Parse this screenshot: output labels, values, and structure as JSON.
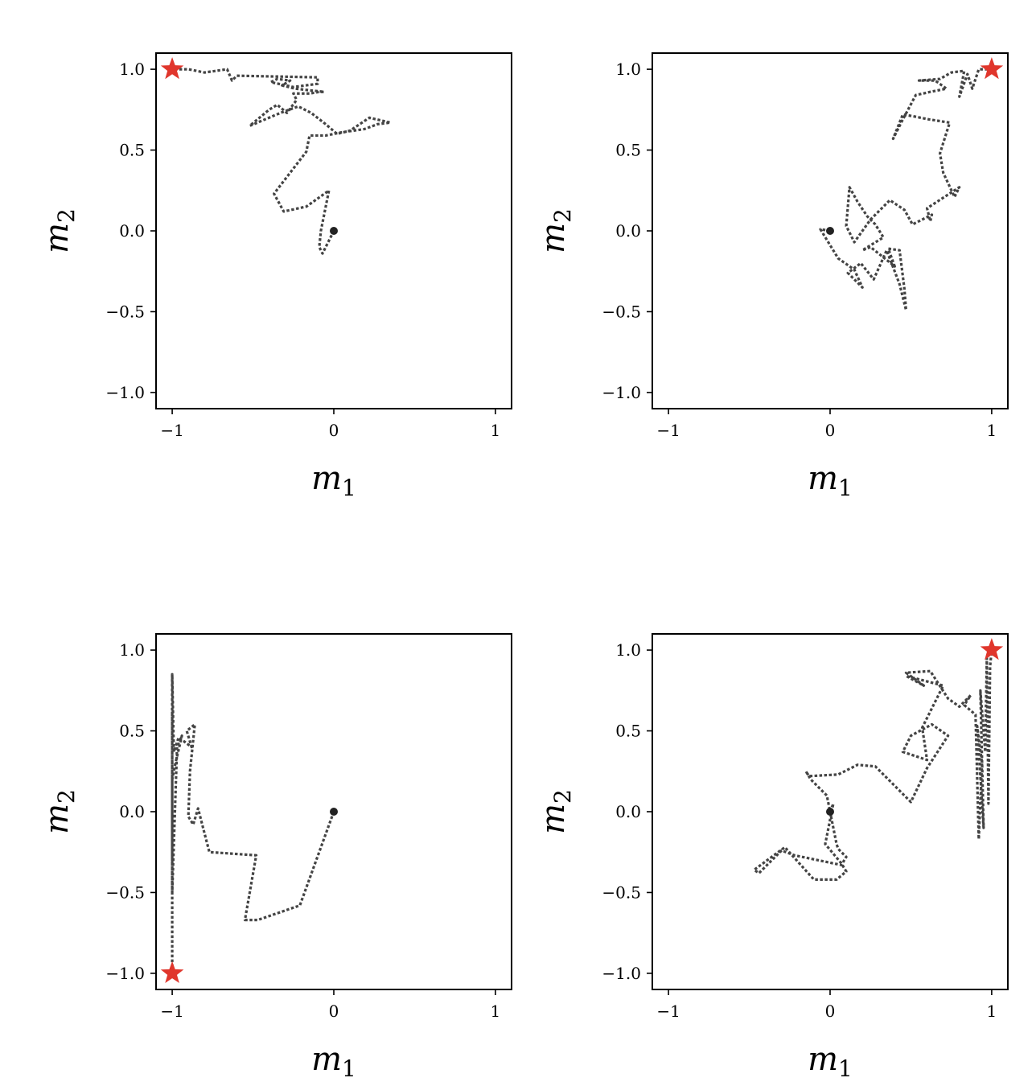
{
  "chart_data": [
    {
      "type": "line",
      "xlabel": "m",
      "xlabel_sub": "1",
      "ylabel": "m",
      "ylabel_sub": "2",
      "xlim": [
        -1.1,
        1.1
      ],
      "ylim": [
        -1.1,
        1.1
      ],
      "xticks": [
        -1,
        0,
        1
      ],
      "xtick_labels": [
        "−1",
        "0",
        "1"
      ],
      "yticks": [
        -1.0,
        -0.5,
        0.0,
        0.5,
        1.0
      ],
      "ytick_labels": [
        "−1.0",
        "−0.5",
        "0.0",
        "0.5",
        "1.0"
      ],
      "grid": false,
      "colors": {
        "trajectory": "#444444",
        "start": "#222222",
        "target": "#e0362c"
      },
      "start": [
        0,
        0
      ],
      "target": [
        -1,
        1
      ],
      "series": [
        {
          "x": [
            0,
            -0.07,
            -0.09,
            -0.08,
            -0.03,
            -0.17,
            -0.31,
            -0.37,
            -0.17,
            -0.15,
            -0.05,
            0.05,
            0.19,
            0.27,
            0.35,
            0.22,
            0.1,
            0.02,
            -0.05,
            -0.14,
            -0.22,
            -0.33,
            -0.52,
            -0.4,
            -0.35,
            -0.29,
            -0.23,
            -0.25,
            -0.15,
            -0.09,
            -0.06,
            -0.24,
            -0.32,
            -0.27,
            -0.35,
            -0.39,
            -0.25,
            -0.1,
            -0.1,
            -0.6,
            -0.63,
            -0.66,
            -0.8,
            -0.9,
            -1
          ],
          "y": [
            0,
            -0.14,
            -0.1,
            0,
            0.25,
            0.15,
            0.12,
            0.23,
            0.49,
            0.59,
            0.59,
            0.61,
            0.63,
            0.66,
            0.67,
            0.7,
            0.62,
            0.6,
            0.66,
            0.73,
            0.77,
            0.73,
            0.65,
            0.75,
            0.78,
            0.73,
            0.81,
            0.85,
            0.85,
            0.86,
            0.86,
            0.88,
            0.9,
            0.93,
            0.94,
            0.92,
            0.89,
            0.91,
            0.95,
            0.96,
            0.93,
            1,
            0.98,
            1,
            1
          ]
        }
      ]
    },
    {
      "type": "line",
      "xlabel": "m",
      "xlabel_sub": "1",
      "ylabel": "m",
      "ylabel_sub": "2",
      "xlim": [
        -1.1,
        1.1
      ],
      "ylim": [
        -1.1,
        1.1
      ],
      "xticks": [
        -1,
        0,
        1
      ],
      "xtick_labels": [
        "−1",
        "0",
        "1"
      ],
      "yticks": [
        -1.0,
        -0.5,
        0.0,
        0.5,
        1.0
      ],
      "ytick_labels": [
        "−1.0",
        "−0.5",
        "0.0",
        "0.5",
        "1.0"
      ],
      "grid": false,
      "colors": {
        "trajectory": "#444444",
        "start": "#222222",
        "target": "#e0362c"
      },
      "start": [
        0,
        0
      ],
      "target": [
        1,
        1
      ],
      "series": [
        {
          "x": [
            0,
            -0.06,
            0.05,
            0.15,
            0.2,
            0.11,
            0.19,
            0.27,
            0.35,
            0.43,
            0.47,
            0.46,
            0.43,
            0.36,
            0.4,
            0.25,
            0.2,
            0.33,
            0.28,
            0.23,
            0.17,
            0.12,
            0.1,
            0.15,
            0.25,
            0.37,
            0.46,
            0.51,
            0.63,
            0.62,
            0.6,
            0.8,
            0.77,
            0.7,
            0.68,
            0.74,
            0.61,
            0.51,
            0.45,
            0.39,
            0.44,
            0.53,
            0.62,
            0.72,
            0.65,
            0.55,
            0.68,
            0.75,
            0.83,
            0.8,
            0.85,
            0.88,
            0.92,
            1
          ],
          "y": [
            0,
            0.01,
            -0.17,
            -0.24,
            -0.35,
            -0.26,
            -0.2,
            -0.3,
            -0.12,
            -0.33,
            -0.49,
            -0.36,
            -0.12,
            -0.11,
            -0.22,
            -0.1,
            -0.12,
            -0.04,
            0.04,
            0.09,
            0.18,
            0.27,
            0.03,
            -0.07,
            0.07,
            0.19,
            0.13,
            0.04,
            0.1,
            0.06,
            0.14,
            0.27,
            0.21,
            0.36,
            0.48,
            0.67,
            0.69,
            0.71,
            0.72,
            0.57,
            0.67,
            0.84,
            0.86,
            0.88,
            0.93,
            0.93,
            0.94,
            0.98,
            0.99,
            0.83,
            0.97,
            0.88,
            1,
            1
          ]
        }
      ]
    },
    {
      "type": "line",
      "xlabel": "m",
      "xlabel_sub": "1",
      "ylabel": "m",
      "ylabel_sub": "2",
      "xlim": [
        -1.1,
        1.1
      ],
      "ylim": [
        -1.1,
        1.1
      ],
      "xticks": [
        -1,
        0,
        1
      ],
      "xtick_labels": [
        "−1",
        "0",
        "1"
      ],
      "yticks": [
        -1.0,
        -0.5,
        0.0,
        0.5,
        1.0
      ],
      "ytick_labels": [
        "−1.0",
        "−0.5",
        "0.0",
        "0.5",
        "1.0"
      ],
      "grid": false,
      "colors": {
        "trajectory": "#444444",
        "start": "#222222",
        "target": "#e0362c"
      },
      "start": [
        0,
        0
      ],
      "target": [
        -1,
        -1
      ],
      "series": [
        {
          "x": [
            0,
            -0.21,
            -0.47,
            -0.55,
            -0.48,
            -0.77,
            -0.84,
            -0.87,
            -0.9,
            -0.89,
            -0.86,
            -0.91,
            -0.88,
            -0.96,
            -0.99,
            -1,
            -1,
            -1,
            -1,
            -0.97,
            -0.94,
            -0.98,
            -1,
            -1,
            -1,
            -1,
            -1
          ],
          "y": [
            0,
            -0.58,
            -0.67,
            -0.67,
            -0.27,
            -0.25,
            0.02,
            -0.08,
            -0.03,
            0.25,
            0.54,
            0.5,
            0.4,
            0.46,
            0.37,
            0.85,
            -0.1,
            0.62,
            -0.5,
            0.4,
            0.47,
            0.3,
            0.2,
            -0.3,
            0.54,
            -0.6,
            -1
          ]
        }
      ]
    },
    {
      "type": "line",
      "xlabel": "m",
      "xlabel_sub": "1",
      "ylabel": "m",
      "ylabel_sub": "2",
      "xlim": [
        -1.1,
        1.1
      ],
      "ylim": [
        -1.1,
        1.1
      ],
      "xticks": [
        -1,
        0,
        1
      ],
      "xtick_labels": [
        "−1",
        "0",
        "1"
      ],
      "yticks": [
        -1.0,
        -0.5,
        0.0,
        0.5,
        1.0
      ],
      "ytick_labels": [
        "−1.0",
        "−0.5",
        "0.0",
        "0.5",
        "1.0"
      ],
      "grid": false,
      "colors": {
        "trajectory": "#444444",
        "start": "#222222",
        "target": "#e0362c"
      },
      "start": [
        0,
        0
      ],
      "target": [
        1,
        1
      ],
      "series": [
        {
          "x": [
            0,
            0.02,
            -0.03,
            0.07,
            0.1,
            0.04,
            -0.1,
            -0.28,
            -0.47,
            -0.44,
            -0.35,
            -0.3,
            -0.22,
            0.07,
            0.1,
            0.05,
            0.04,
            -0.02,
            -0.12,
            -0.15,
            -0.13,
            0.05,
            0.17,
            0.28,
            0.5,
            0.6,
            0.73,
            0.63,
            0.5,
            0.45,
            0.6,
            0.57,
            0.7,
            0.47,
            0.58,
            0.47,
            0.62,
            0.73,
            0.8,
            0.87,
            0.83,
            0.9,
            0.92,
            0.94,
            0.91,
            0.95,
            0.93,
            0.96,
            0.97,
            0.98,
            0.99,
            1
          ],
          "y": [
            0,
            0.05,
            -0.2,
            -0.32,
            -0.37,
            -0.42,
            -0.42,
            -0.22,
            -0.36,
            -0.38,
            -0.29,
            -0.24,
            -0.27,
            -0.33,
            -0.28,
            -0.23,
            -0.2,
            0.1,
            0.2,
            0.25,
            0.22,
            0.23,
            0.29,
            0.28,
            0.06,
            0.27,
            0.47,
            0.54,
            0.47,
            0.37,
            0.32,
            0.52,
            0.78,
            0.84,
            0.78,
            0.86,
            0.87,
            0.7,
            0.65,
            0.72,
            0.66,
            0.6,
            -0.17,
            0.3,
            0.53,
            -0.1,
            0.75,
            0.37,
            0.95,
            0.05,
            0.9,
            1
          ]
        }
      ]
    }
  ]
}
